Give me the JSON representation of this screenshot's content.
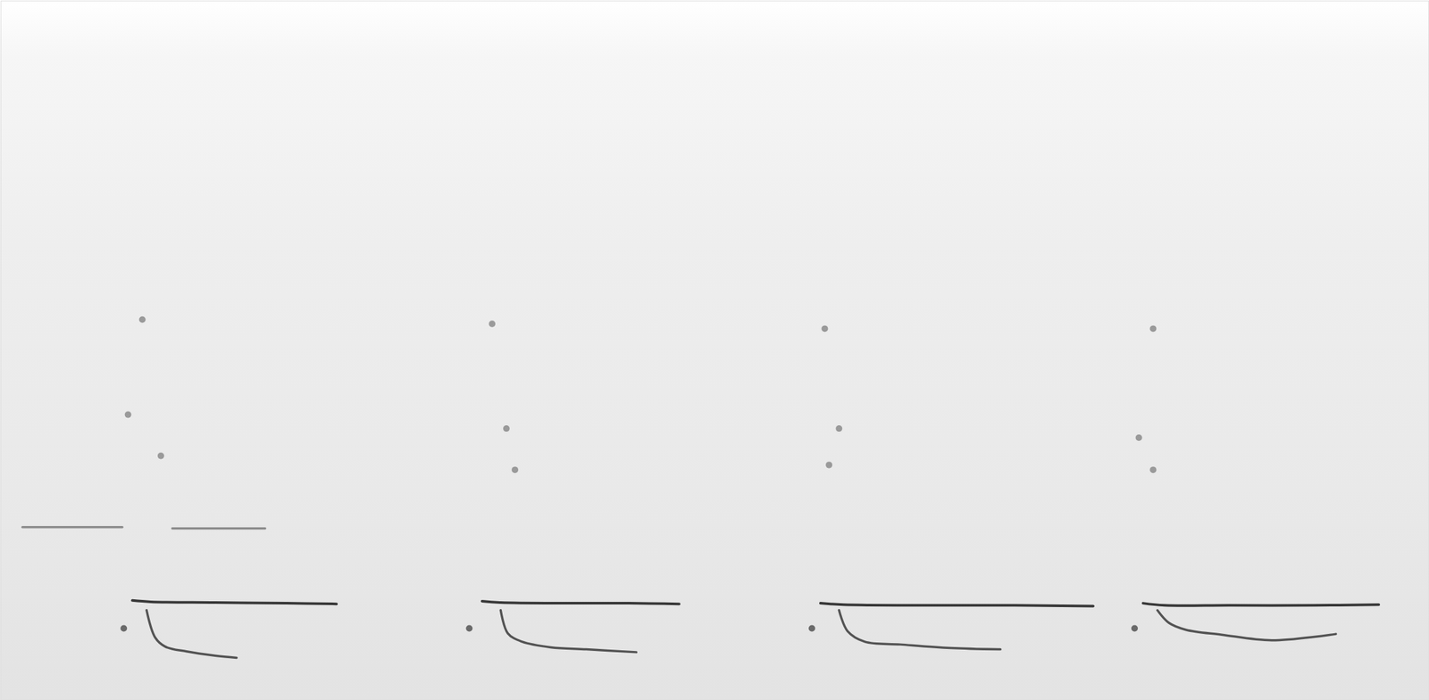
{
  "chart_data": {
    "type": "line",
    "xlim": [
      0,
      100
    ],
    "ylim": [
      0,
      100
    ],
    "xticks": [],
    "yticks": [],
    "tick_labels": false,
    "grid": false,
    "series": [
      {
        "type": "line",
        "color": "#1a1a1a",
        "x": [
          9.2,
          10.5,
          15,
          20,
          23.5
        ],
        "values": [
          14.2,
          14.0,
          13.9,
          13.8,
          13.7
        ]
      },
      {
        "type": "line",
        "color": "#1a1a1a",
        "x": [
          33.7,
          35,
          40,
          44,
          47.5
        ],
        "values": [
          14.1,
          13.9,
          13.8,
          13.8,
          13.7
        ]
      },
      {
        "type": "line",
        "color": "#1a1a1a",
        "x": [
          57.4,
          59,
          65,
          71,
          76.5
        ],
        "values": [
          13.8,
          13.6,
          13.5,
          13.5,
          13.4
        ]
      },
      {
        "type": "line",
        "color": "#1a1a1a",
        "x": [
          80.0,
          81.5,
          86,
          92,
          96.5
        ],
        "values": [
          13.8,
          13.5,
          13.5,
          13.5,
          13.6
        ]
      },
      {
        "type": "line",
        "color": "#3a3a3a",
        "x": [
          10.2,
          10.8,
          11.5,
          13,
          15,
          16.5
        ],
        "values": [
          12.8,
          8.9,
          7.6,
          6.9,
          6.3,
          6.0
        ]
      },
      {
        "type": "line",
        "color": "#3a3a3a",
        "x": [
          35,
          35.5,
          36.5,
          38.5,
          41,
          44.5
        ],
        "values": [
          12.8,
          9.5,
          8.3,
          7.5,
          7.2,
          6.8
        ]
      },
      {
        "type": "line",
        "color": "#3a3a3a",
        "x": [
          58.7,
          59.3,
          60.5,
          63,
          66.5,
          70
        ],
        "values": [
          12.8,
          9.8,
          8.3,
          7.9,
          7.4,
          7.2
        ]
      },
      {
        "type": "line",
        "color": "#3a3a3a",
        "x": [
          81,
          81.8,
          83,
          85.5,
          89,
          93.5
        ],
        "values": [
          12.8,
          11.0,
          10.0,
          9.3,
          8.5,
          9.4
        ]
      },
      {
        "type": "line",
        "color": "#7a7a7a",
        "x": [
          1.5,
          8.5
        ],
        "values": [
          24.7,
          24.7
        ]
      },
      {
        "type": "line",
        "color": "#7a7a7a",
        "x": [
          12,
          18.5
        ],
        "values": [
          24.5,
          24.5
        ]
      },
      {
        "type": "scatter",
        "marker": "circle",
        "color": "#9a9a9a",
        "x": [
          9.9,
          8.9,
          11.2,
          34.4,
          35.4,
          36.0,
          57.7,
          58.7,
          58.0,
          80.7,
          80.7,
          79.7
        ],
        "values": [
          54.4,
          40.8,
          34.9,
          53.8,
          38.8,
          32.9,
          53.1,
          38.8,
          33.6,
          53.1,
          32.9,
          37.5
        ]
      },
      {
        "type": "scatter",
        "marker": "circle",
        "color": "#6a6a6a",
        "x": [
          8.6,
          32.8,
          56.8,
          79.4
        ],
        "values": [
          10.2,
          10.2,
          10.2,
          10.2
        ]
      }
    ]
  }
}
